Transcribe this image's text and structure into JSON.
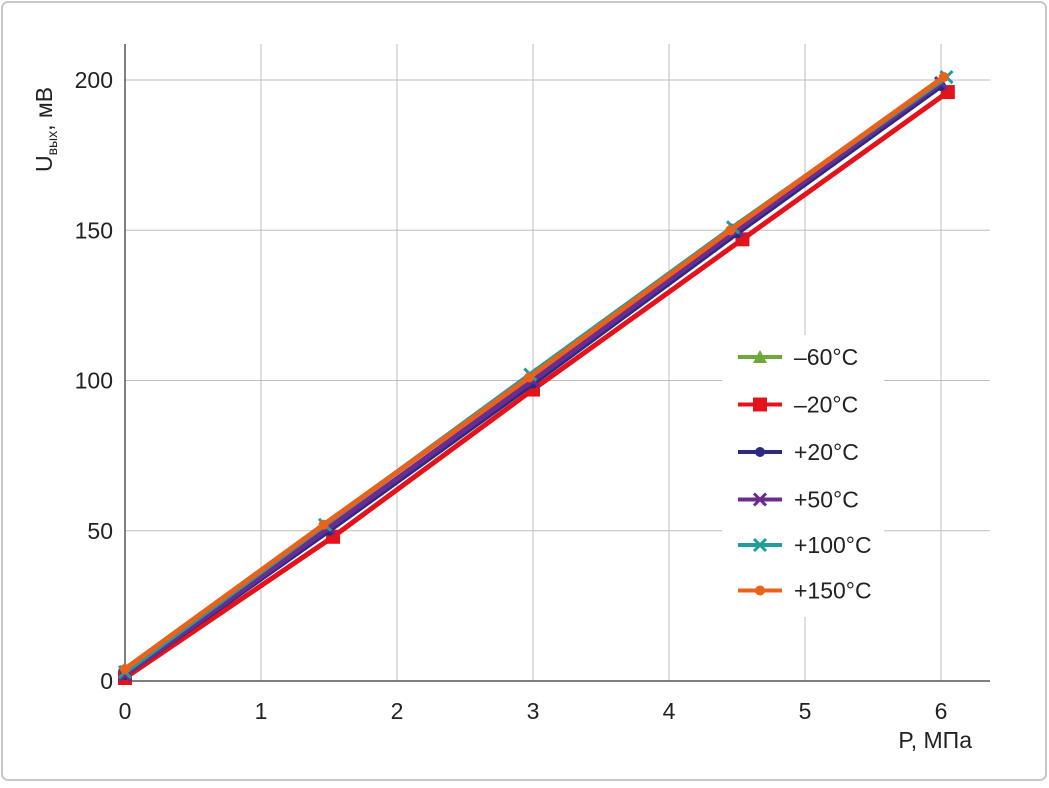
{
  "chart_data": {
    "type": "line",
    "ylabel": {
      "main": "U",
      "sub": "вых",
      "unit": ", мВ"
    },
    "xlabel": "P, МПа",
    "xlim": [
      0,
      6.36
    ],
    "xticks": [
      0,
      1,
      2,
      3,
      4,
      5,
      6
    ],
    "ylim": [
      0,
      212
    ],
    "yticks": [
      0,
      50,
      100,
      150,
      200
    ],
    "grid": true,
    "legend": "right",
    "series": [
      {
        "name": "–60°C",
        "color": "#6fa83a",
        "marker": "triangle",
        "x": [
          0,
          1.5,
          3,
          4.5,
          6
        ],
        "values": [
          1,
          51,
          100,
          150,
          199
        ]
      },
      {
        "name": "–20°C",
        "color": "#e3131b",
        "marker": "square",
        "x": [
          0,
          1.53,
          3,
          4.54,
          6.05
        ],
        "values": [
          1,
          48,
          97,
          147,
          196
        ]
      },
      {
        "name": "+20°C",
        "color": "#2b2a80",
        "marker": "circle",
        "x": [
          0,
          1.5,
          3,
          4.5,
          6
        ],
        "values": [
          2,
          50,
          99,
          149,
          198
        ]
      },
      {
        "name": "+50°C",
        "color": "#6b2c91",
        "marker": "x",
        "x": [
          0,
          1.5,
          3,
          4.5,
          6
        ],
        "values": [
          2,
          51,
          100,
          150,
          199
        ]
      },
      {
        "name": "+100°C",
        "color": "#1f9e9c",
        "marker": "x",
        "x": [
          0,
          1.47,
          2.98,
          4.47,
          6.04
        ],
        "values": [
          3,
          52,
          102,
          151,
          201
        ]
      },
      {
        "name": "+150°C",
        "color": "#e8621c",
        "marker": "circle",
        "x": [
          0,
          1.46,
          2.97,
          4.45,
          6.02
        ],
        "values": [
          4,
          52,
          101,
          150,
          201
        ]
      }
    ]
  }
}
